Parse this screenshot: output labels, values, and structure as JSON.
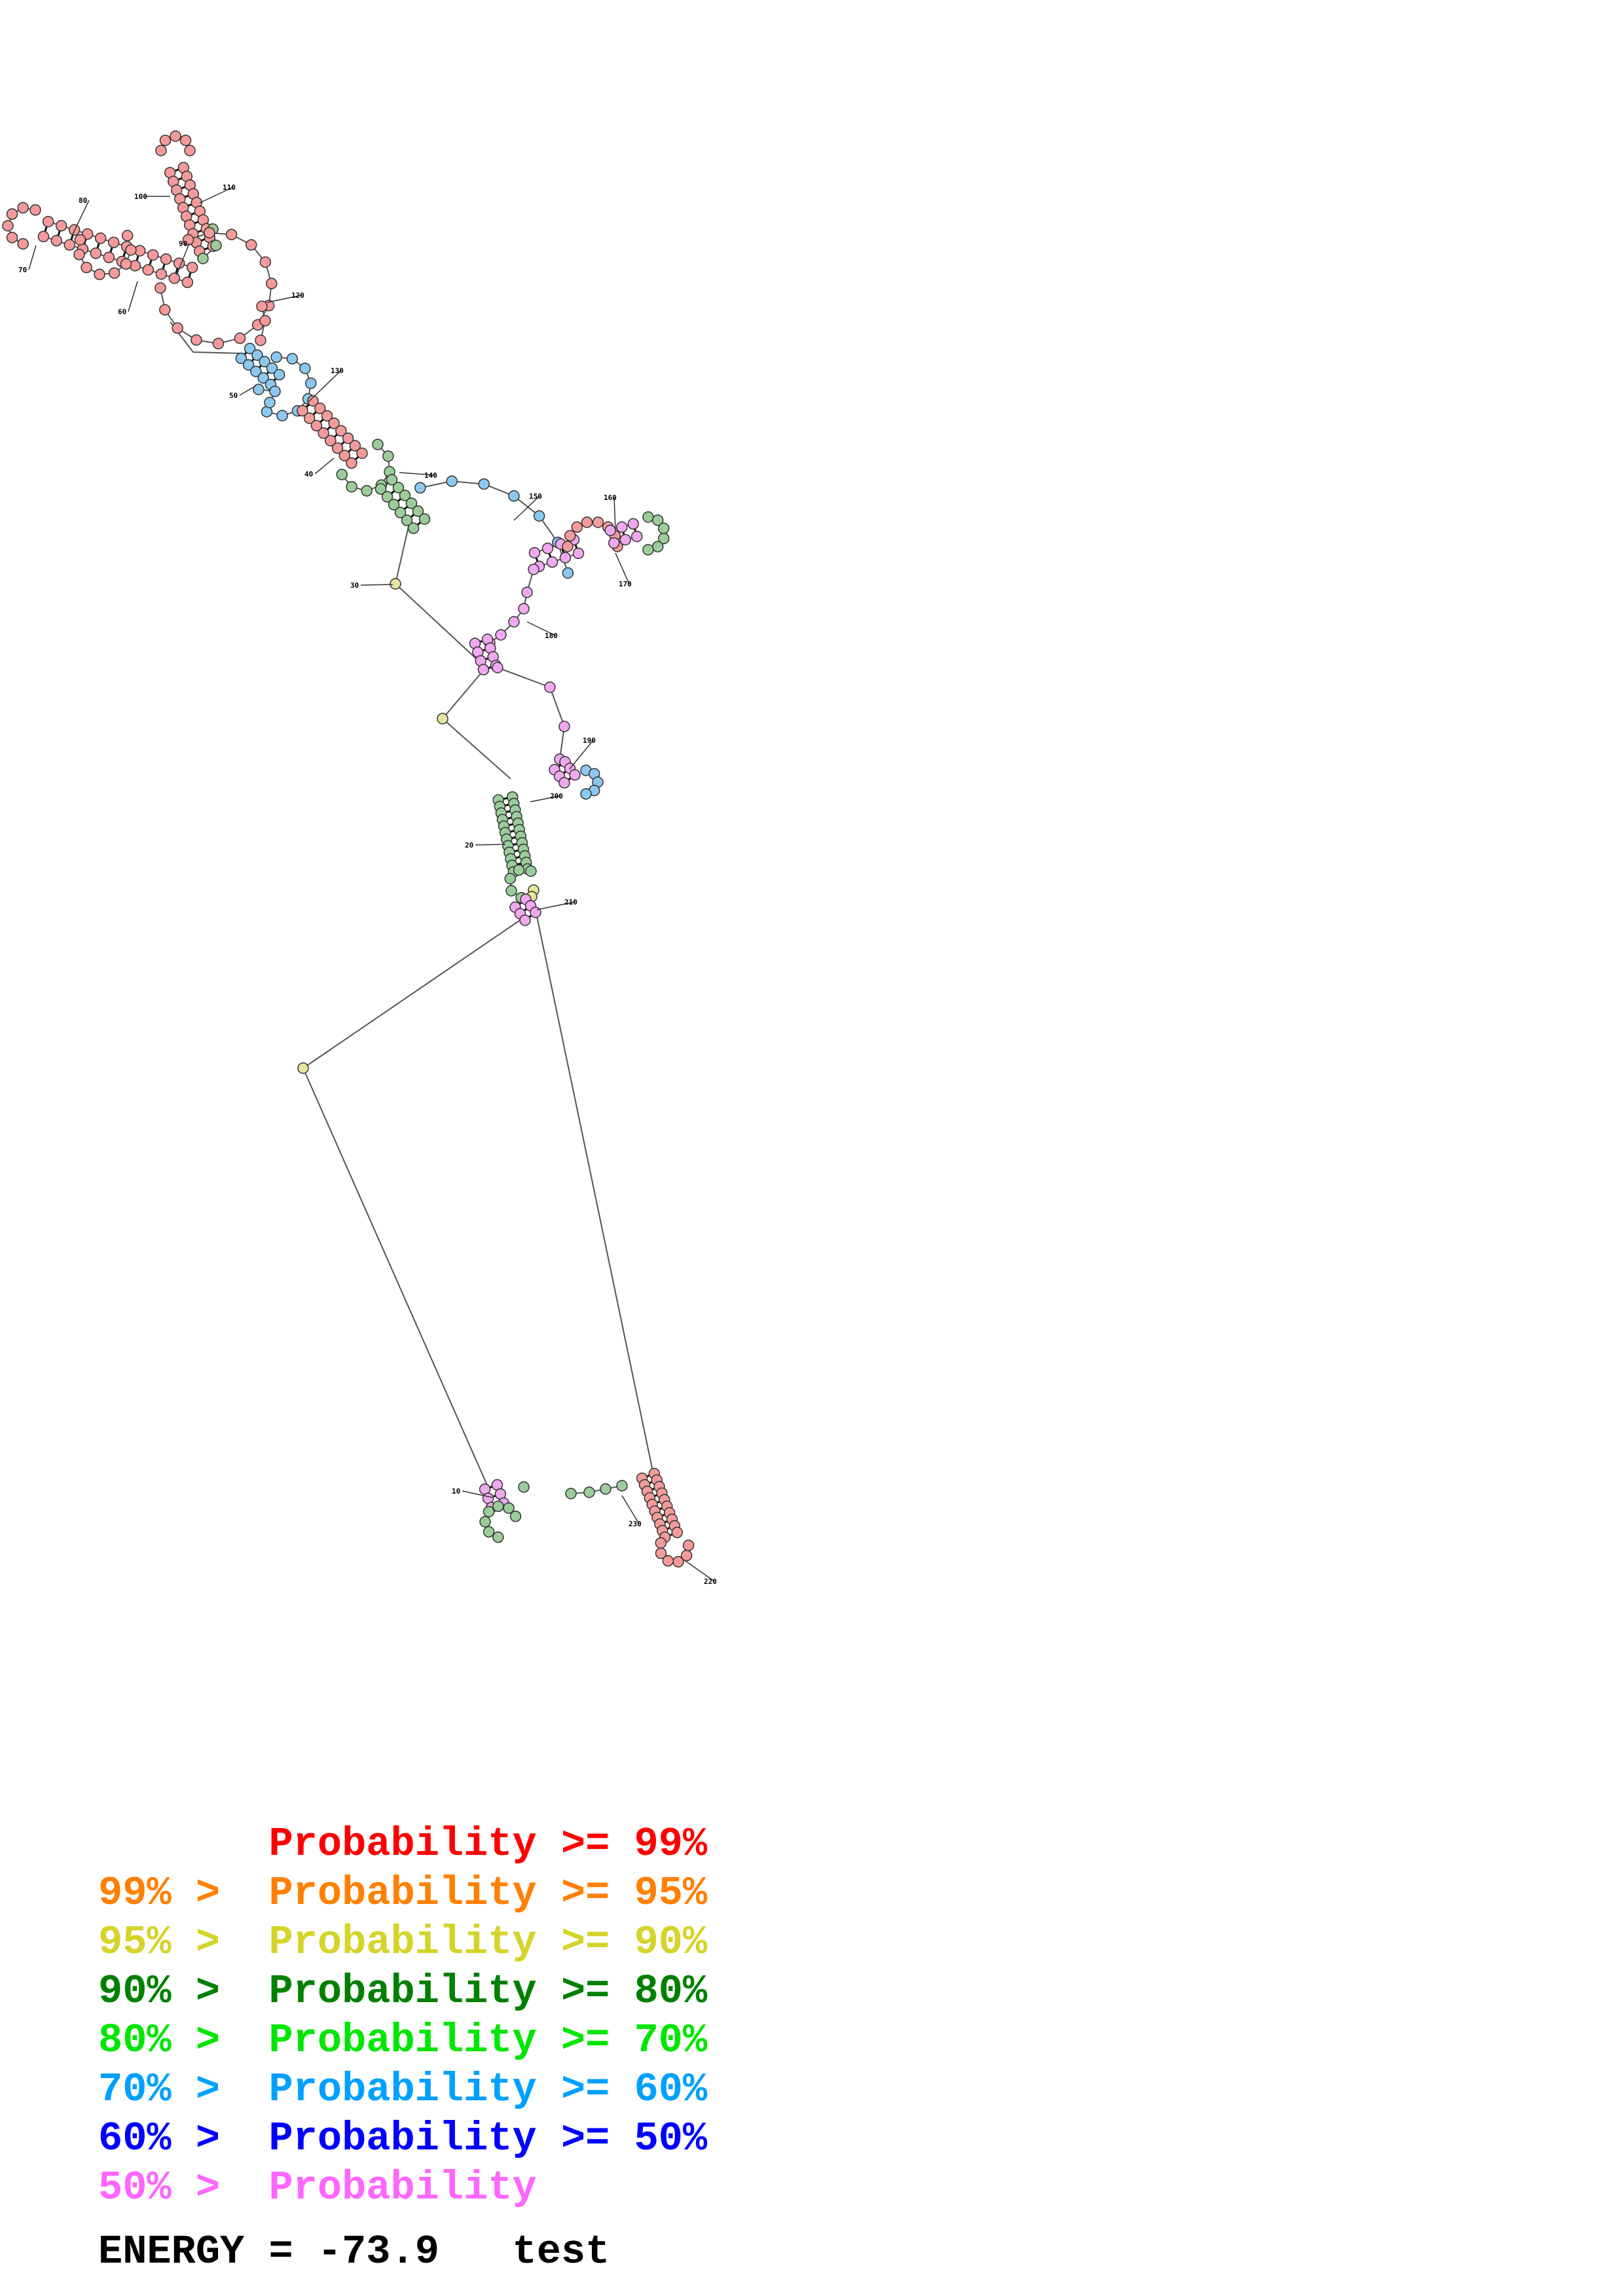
{
  "diagram": {
    "position_labels": [
      "10",
      "20",
      "30",
      "40",
      "50",
      "60",
      "70",
      "80",
      "90",
      "100",
      "110",
      "120",
      "130",
      "140",
      "150",
      "160",
      "170",
      "180",
      "190",
      "200",
      "210",
      "220",
      "230"
    ],
    "colors": {
      "p99": "#ff0000",
      "p95": "#ff8000",
      "p90": "#d4d42a",
      "p80": "#008000",
      "p70": "#00e600",
      "p60": "#00a0ff",
      "p50": "#0000ff",
      "plow": "#ff66ff",
      "node_red": "#f59a9a",
      "node_yellow": "#e6e6a0",
      "node_green": "#9acd9a",
      "node_blue": "#8cc8f0",
      "node_violet": "#f0a8f0"
    }
  },
  "legend": [
    {
      "prefix": "",
      "label": "Probability",
      "suffix": ">= 99%",
      "color": "#ff0000"
    },
    {
      "prefix": "99% >",
      "label": "Probability",
      "suffix": ">= 95%",
      "color": "#ff8000"
    },
    {
      "prefix": "95% >",
      "label": "Probability",
      "suffix": ">= 90%",
      "color": "#d4d42a"
    },
    {
      "prefix": "90% >",
      "label": "Probability",
      "suffix": ">= 80%",
      "color": "#008000"
    },
    {
      "prefix": "80% >",
      "label": "Probability",
      "suffix": ">= 70%",
      "color": "#00e600"
    },
    {
      "prefix": "70% >",
      "label": "Probability",
      "suffix": ">= 60%",
      "color": "#00a0ff"
    },
    {
      "prefix": "60% >",
      "label": "Probability",
      "suffix": ">= 50%",
      "color": "#0000ff"
    },
    {
      "prefix": "50% >",
      "label": "Probability",
      "suffix": "",
      "color": "#ff66ff"
    }
  ],
  "energy": {
    "label": "ENERGY =",
    "value": "-73.9",
    "name": "test"
  }
}
